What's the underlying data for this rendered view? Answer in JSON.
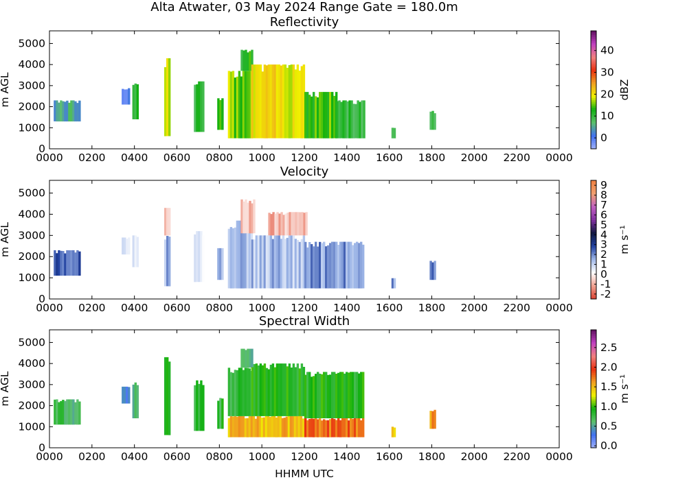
{
  "title": "Alta Atwater, 03 May 2024 Range Gate = 180.0m",
  "xlabel": "HHMM UTC",
  "colors": {
    "reflectivity_scale": [
      "#a0b0f8",
      "#4070f0",
      "#5cc06c",
      "#10b010",
      "#f0f000",
      "#f0a020",
      "#e83010",
      "#f08080",
      "#c040c0",
      "#601060"
    ],
    "velocity_scale": [
      "#d84030",
      "#f0a090",
      "#ffffff",
      "#a0b8e8",
      "#2040a0",
      "#101840",
      "#8030a0",
      "#c060c0",
      "#f0a070",
      "#f08040"
    ],
    "width_scale": [
      "#a0b0f8",
      "#4070f0",
      "#5cc06c",
      "#10b010",
      "#f0f000",
      "#f0a020",
      "#e83010",
      "#f08080",
      "#c040c0",
      "#601060"
    ]
  },
  "chart_data": [
    {
      "type": "heatmap",
      "title": "Reflectivity",
      "ylabel": "m AGL",
      "x_ticks": [
        "0000",
        "0200",
        "0400",
        "0600",
        "0800",
        "1000",
        "1200",
        "1400",
        "1600",
        "1800",
        "2000",
        "2200",
        "0000"
      ],
      "x_hours": [
        0,
        2,
        4,
        6,
        8,
        10,
        12,
        14,
        16,
        18,
        20,
        22,
        24
      ],
      "xlim_hours": [
        0,
        24
      ],
      "y_ticks": [
        "0",
        "1000",
        "2000",
        "3000",
        "4000",
        "5000"
      ],
      "y_values": [
        0,
        1000,
        2000,
        3000,
        4000,
        5000
      ],
      "ylim": [
        0,
        5600
      ],
      "colorbar": {
        "label": "dBZ",
        "ticks": [
          "0",
          "10",
          "20",
          "30",
          "40"
        ],
        "tick_values": [
          0,
          10,
          20,
          30,
          40
        ],
        "range": [
          -5,
          49
        ]
      },
      "regions": [
        {
          "t0": 0.2,
          "t1": 1.4,
          "z0": 1300,
          "z1": 2300,
          "value": 5
        },
        {
          "t0": 3.4,
          "t1": 3.7,
          "z0": 2100,
          "z1": 2900,
          "value": 0
        },
        {
          "t0": 3.9,
          "t1": 4.1,
          "z0": 1400,
          "z1": 3100,
          "value": 12
        },
        {
          "t0": 5.4,
          "t1": 5.6,
          "z0": 600,
          "z1": 4300,
          "value": 18
        },
        {
          "t0": 6.8,
          "t1": 7.2,
          "z0": 800,
          "z1": 3200,
          "value": 10
        },
        {
          "t0": 7.9,
          "t1": 8.1,
          "z0": 900,
          "z1": 2400,
          "value": 12
        },
        {
          "t0": 8.4,
          "t1": 9.5,
          "z0": 500,
          "z1": 3700,
          "value": 16
        },
        {
          "t0": 9.0,
          "t1": 9.5,
          "z0": 3700,
          "z1": 4700,
          "value": 12
        },
        {
          "t0": 9.5,
          "t1": 12.0,
          "z0": 500,
          "z1": 4000,
          "value": 20
        },
        {
          "t0": 12.0,
          "t1": 13.5,
          "z0": 500,
          "z1": 2700,
          "value": 14
        },
        {
          "t0": 13.5,
          "t1": 14.8,
          "z0": 500,
          "z1": 2300,
          "value": 10
        },
        {
          "t0": 16.1,
          "t1": 16.2,
          "z0": 500,
          "z1": 1000,
          "value": 8
        },
        {
          "t0": 17.9,
          "t1": 18.1,
          "z0": 900,
          "z1": 1800,
          "value": 10
        }
      ]
    },
    {
      "type": "heatmap",
      "title": "Velocity",
      "ylabel": "m AGL",
      "x_ticks": [
        "0000",
        "0200",
        "0400",
        "0600",
        "0800",
        "1000",
        "1200",
        "1400",
        "1600",
        "1800",
        "2000",
        "2200",
        "0000"
      ],
      "x_hours": [
        0,
        2,
        4,
        6,
        8,
        10,
        12,
        14,
        16,
        18,
        20,
        22,
        24
      ],
      "xlim_hours": [
        0,
        24
      ],
      "y_ticks": [
        "0",
        "1000",
        "2000",
        "3000",
        "4000",
        "5000"
      ],
      "y_values": [
        0,
        1000,
        2000,
        3000,
        4000,
        5000
      ],
      "ylim": [
        0,
        5600
      ],
      "colorbar": {
        "label": "m s⁻¹",
        "ticks": [
          "9",
          "8",
          "7",
          "6",
          "5",
          "4",
          "3",
          "2",
          "1",
          "0",
          "-1",
          "-2"
        ],
        "tick_values": [
          9,
          8,
          7,
          6,
          5,
          4,
          3,
          2,
          1,
          0,
          -1,
          -2
        ],
        "range": [
          -2.5,
          9.5
        ]
      },
      "regions": [
        {
          "t0": 0.2,
          "t1": 1.4,
          "z0": 1100,
          "z1": 2300,
          "value": 2.5
        },
        {
          "t0": 3.4,
          "t1": 3.7,
          "z0": 2100,
          "z1": 2900,
          "value": 1
        },
        {
          "t0": 3.9,
          "t1": 4.1,
          "z0": 1500,
          "z1": 3000,
          "value": 0.5
        },
        {
          "t0": 5.4,
          "t1": 5.6,
          "z0": 3000,
          "z1": 4300,
          "value": -1
        },
        {
          "t0": 5.4,
          "t1": 5.6,
          "z0": 600,
          "z1": 3000,
          "value": 1.5
        },
        {
          "t0": 6.8,
          "t1": 7.2,
          "z0": 800,
          "z1": 3200,
          "value": 0.5
        },
        {
          "t0": 7.9,
          "t1": 8.1,
          "z0": 900,
          "z1": 2400,
          "value": 1.5
        },
        {
          "t0": 8.4,
          "t1": 9.5,
          "z0": 500,
          "z1": 3700,
          "value": 1.2
        },
        {
          "t0": 9.0,
          "t1": 9.6,
          "z0": 3100,
          "z1": 4700,
          "value": -1
        },
        {
          "t0": 9.5,
          "t1": 12.0,
          "z0": 500,
          "z1": 3000,
          "value": 1.3
        },
        {
          "t0": 10.3,
          "t1": 12.1,
          "z0": 3000,
          "z1": 4100,
          "value": -0.8
        },
        {
          "t0": 12.0,
          "t1": 14.8,
          "z0": 500,
          "z1": 2700,
          "value": 1.8
        },
        {
          "t0": 16.1,
          "t1": 16.2,
          "z0": 500,
          "z1": 1000,
          "value": 2
        },
        {
          "t0": 17.9,
          "t1": 18.1,
          "z0": 900,
          "z1": 1800,
          "value": 2
        }
      ]
    },
    {
      "type": "heatmap",
      "title": "Spectral Width",
      "ylabel": "m AGL",
      "x_ticks": [
        "0000",
        "0200",
        "0400",
        "0600",
        "0800",
        "1000",
        "1200",
        "1400",
        "1600",
        "1800",
        "2000",
        "2200",
        "0000"
      ],
      "x_hours": [
        0,
        2,
        4,
        6,
        8,
        10,
        12,
        14,
        16,
        18,
        20,
        22,
        24
      ],
      "xlim_hours": [
        0,
        24
      ],
      "y_ticks": [
        "0",
        "1000",
        "2000",
        "3000",
        "4000",
        "5000"
      ],
      "y_values": [
        0,
        1000,
        2000,
        3000,
        4000,
        5000
      ],
      "ylim": [
        0,
        5600
      ],
      "colorbar": {
        "label": "m s⁻¹",
        "ticks": [
          "0.0",
          "0.5",
          "1.0",
          "1.5",
          "2.0",
          "2.5"
        ],
        "tick_values": [
          0.0,
          0.5,
          1.0,
          1.5,
          2.0,
          2.5
        ],
        "range": [
          -0.05,
          2.95
        ]
      },
      "regions": [
        {
          "t0": 0.2,
          "t1": 1.4,
          "z0": 1100,
          "z1": 2300,
          "value": 0.7
        },
        {
          "t0": 3.4,
          "t1": 3.7,
          "z0": 2100,
          "z1": 2900,
          "value": 0.4
        },
        {
          "t0": 3.9,
          "t1": 4.1,
          "z0": 1400,
          "z1": 3100,
          "value": 0.6
        },
        {
          "t0": 5.4,
          "t1": 5.6,
          "z0": 600,
          "z1": 4300,
          "value": 0.8
        },
        {
          "t0": 6.8,
          "t1": 7.2,
          "z0": 800,
          "z1": 3200,
          "value": 0.8
        },
        {
          "t0": 7.9,
          "t1": 8.1,
          "z0": 900,
          "z1": 2400,
          "value": 0.8
        },
        {
          "t0": 8.4,
          "t1": 12.0,
          "z0": 500,
          "z1": 1500,
          "value": 1.5
        },
        {
          "t0": 8.4,
          "t1": 9.5,
          "z0": 1500,
          "z1": 3800,
          "value": 0.8
        },
        {
          "t0": 9.0,
          "t1": 9.5,
          "z0": 3800,
          "z1": 4700,
          "value": 0.5
        },
        {
          "t0": 9.5,
          "t1": 12.0,
          "z0": 1500,
          "z1": 4000,
          "value": 0.9
        },
        {
          "t0": 12.0,
          "t1": 14.8,
          "z0": 500,
          "z1": 1400,
          "value": 1.8
        },
        {
          "t0": 12.0,
          "t1": 14.8,
          "z0": 1400,
          "z1": 3600,
          "value": 0.9
        },
        {
          "t0": 16.1,
          "t1": 16.2,
          "z0": 500,
          "z1": 1000,
          "value": 1.5
        },
        {
          "t0": 17.9,
          "t1": 18.1,
          "z0": 900,
          "z1": 1800,
          "value": 1.7
        }
      ]
    }
  ]
}
